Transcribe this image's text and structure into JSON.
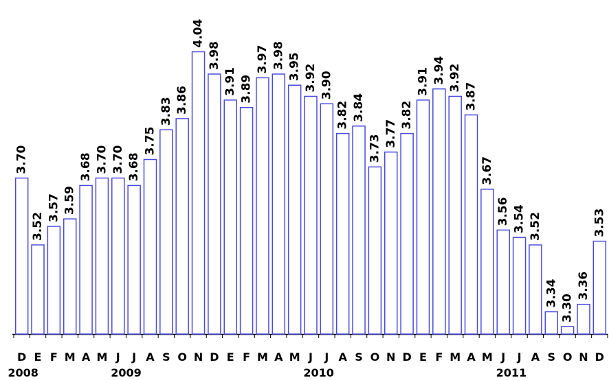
{
  "chart_data": {
    "type": "bar",
    "categories": [
      "D",
      "E",
      "F",
      "M",
      "A",
      "M",
      "J",
      "J",
      "A",
      "S",
      "O",
      "N",
      "D",
      "E",
      "F",
      "M",
      "A",
      "M",
      "J",
      "J",
      "A",
      "S",
      "O",
      "N",
      "D",
      "E",
      "F",
      "M",
      "A",
      "M",
      "J",
      "J",
      "A",
      "S",
      "O",
      "N",
      "D"
    ],
    "values": [
      3.7,
      3.52,
      3.57,
      3.59,
      3.68,
      3.7,
      3.7,
      3.68,
      3.75,
      3.83,
      3.86,
      4.04,
      3.98,
      3.91,
      3.89,
      3.97,
      3.98,
      3.95,
      3.92,
      3.9,
      3.82,
      3.84,
      3.73,
      3.77,
      3.82,
      3.91,
      3.94,
      3.92,
      3.87,
      3.67,
      3.56,
      3.54,
      3.52,
      3.34,
      3.3,
      3.36,
      3.53
    ],
    "value_labels": [
      "3.70",
      "3.52",
      "3.57",
      "3.59",
      "3.68",
      "3.70",
      "3.70",
      "3.68",
      "3.75",
      "3.83",
      "3.86",
      "4.04",
      "3.98",
      "3.91",
      "3.89",
      "3.97",
      "3.98",
      "3.95",
      "3.92",
      "3.90",
      "3.82",
      "3.84",
      "3.73",
      "3.77",
      "3.82",
      "3.91",
      "3.94",
      "3.92",
      "3.87",
      "3.67",
      "3.56",
      "3.54",
      "3.52",
      "3.34",
      "3.30",
      "3.36",
      "3.53"
    ],
    "year_labels": [
      "2008",
      "2009",
      "2010",
      "2011"
    ],
    "color": "#4a4ae0",
    "ylim": [
      3.28,
      4.1
    ]
  }
}
